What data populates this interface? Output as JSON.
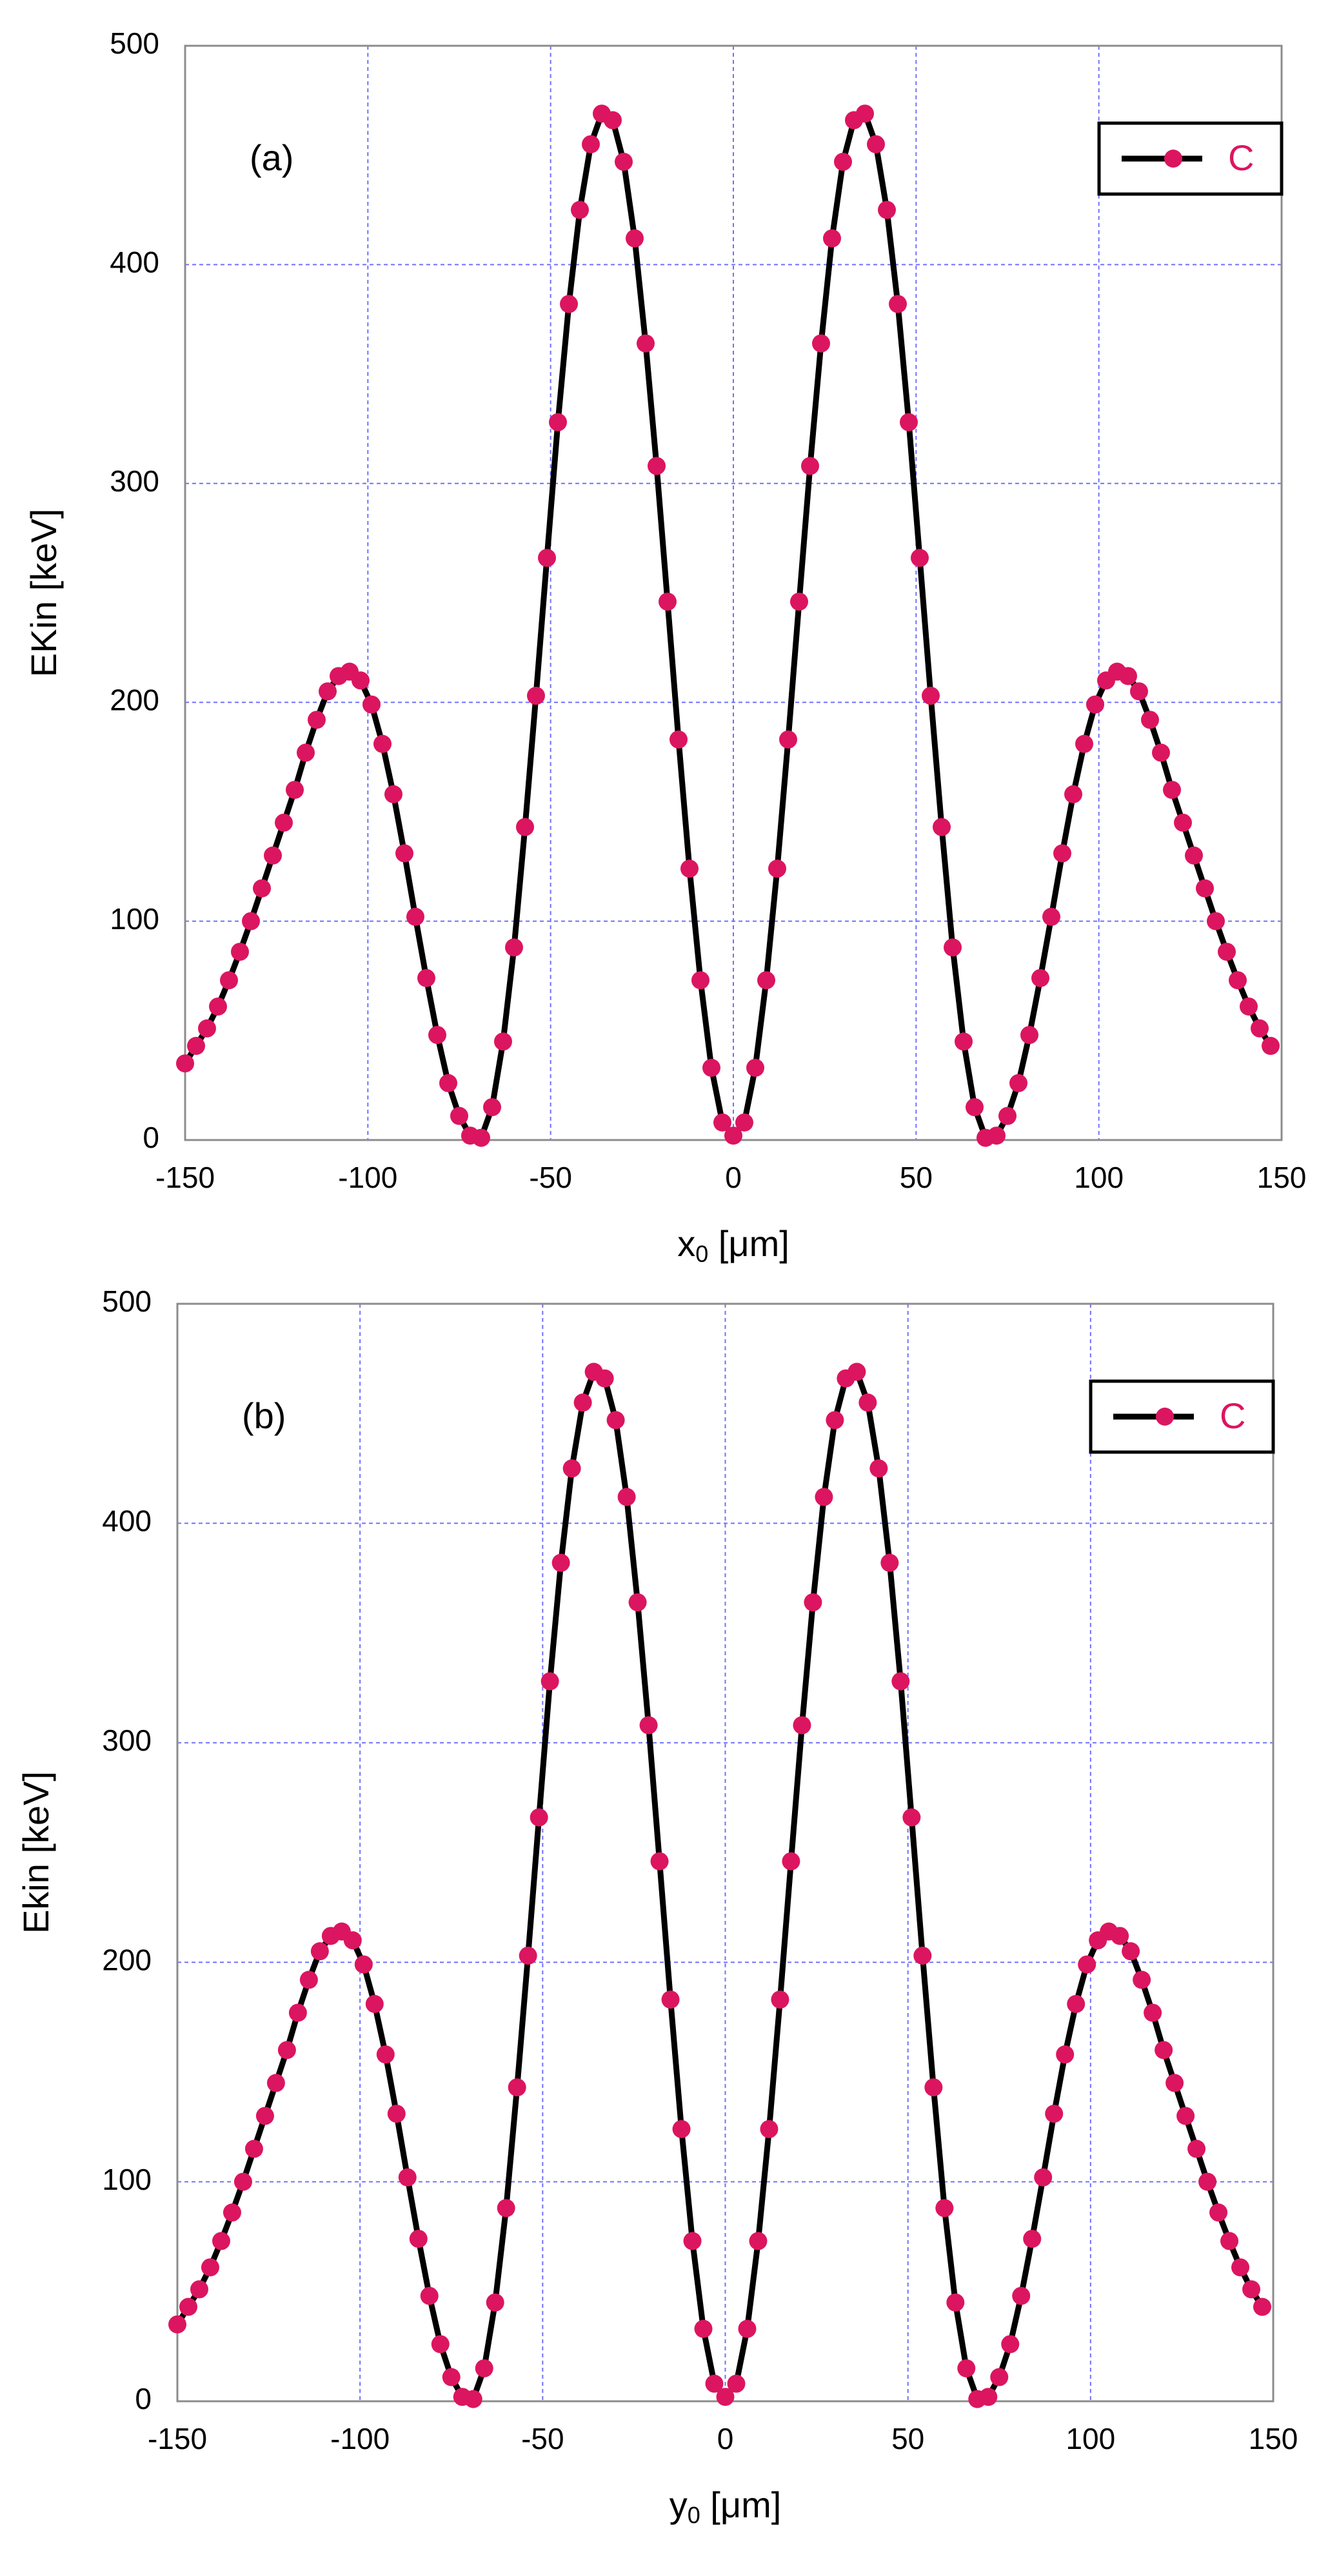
{
  "chart_data": [
    {
      "type": "line",
      "panel_label": "(a)",
      "ylabel": "EKin [keV]",
      "xlabel": {
        "base": "x",
        "sub": "0",
        "rest": " [μm]"
      },
      "xlim": [
        -150,
        150
      ],
      "ylim": [
        0,
        500
      ],
      "xticks": [
        -150,
        -100,
        -50,
        0,
        50,
        100,
        150
      ],
      "yticks": [
        0,
        100,
        200,
        300,
        400,
        500
      ],
      "grid": true,
      "legend": "upper right",
      "line_color": "#000000",
      "x": [
        -150,
        -147,
        -144,
        -141,
        -138,
        -135,
        -132,
        -129,
        -126,
        -123,
        -120,
        -117,
        -114,
        -111,
        -108,
        -105,
        -102,
        -99,
        -96,
        -93,
        -90,
        -87,
        -84,
        -81,
        -78,
        -75,
        -72,
        -69,
        -66,
        -63,
        -60,
        -57,
        -54,
        -51,
        -48,
        -45,
        -42,
        -39,
        -36,
        -33,
        -30,
        -27,
        -24,
        -21,
        -18,
        -15,
        -12,
        -9,
        -6,
        -3,
        0,
        3,
        6,
        9,
        12,
        15,
        18,
        21,
        24,
        27,
        30,
        33,
        36,
        39,
        42,
        45,
        48,
        51,
        54,
        57,
        60,
        63,
        66,
        69,
        72,
        75,
        78,
        81,
        84,
        87,
        90,
        93,
        96,
        99,
        102,
        105,
        108,
        111,
        114,
        117,
        120,
        123,
        126,
        129,
        132,
        135,
        138,
        141,
        144,
        147
      ],
      "series": [
        {
          "name": "C",
          "color": "#dc1560",
          "values": [
            35,
            43,
            51,
            61,
            73,
            86,
            100,
            115,
            130,
            145,
            160,
            177,
            192,
            205,
            212,
            214,
            210,
            199,
            181,
            158,
            131,
            102,
            74,
            48,
            26,
            11,
            2,
            1,
            15,
            45,
            88,
            143,
            203,
            266,
            328,
            382,
            425,
            455,
            469,
            466,
            447,
            412,
            364,
            308,
            246,
            183,
            124,
            73,
            33,
            8,
            2,
            8,
            33,
            73,
            124,
            183,
            246,
            308,
            364,
            412,
            447,
            466,
            469,
            455,
            425,
            382,
            328,
            266,
            203,
            143,
            88,
            45,
            15,
            1,
            2,
            11,
            26,
            48,
            74,
            102,
            131,
            158,
            181,
            199,
            210,
            214,
            212,
            205,
            192,
            177,
            160,
            145,
            130,
            115,
            100,
            86,
            73,
            61,
            51,
            43
          ]
        }
      ]
    },
    {
      "type": "line",
      "panel_label": "(b)",
      "ylabel": "Ekin [keV]",
      "xlabel": {
        "base": "y",
        "sub": "0",
        "rest": " [μm]"
      },
      "xlim": [
        -150,
        150
      ],
      "ylim": [
        0,
        500
      ],
      "xticks": [
        -150,
        -100,
        -50,
        0,
        50,
        100,
        150
      ],
      "yticks": [
        0,
        100,
        200,
        300,
        400,
        500
      ],
      "grid": true,
      "legend": "upper right",
      "line_color": "#000000",
      "x": [
        -150,
        -147,
        -144,
        -141,
        -138,
        -135,
        -132,
        -129,
        -126,
        -123,
        -120,
        -117,
        -114,
        -111,
        -108,
        -105,
        -102,
        -99,
        -96,
        -93,
        -90,
        -87,
        -84,
        -81,
        -78,
        -75,
        -72,
        -69,
        -66,
        -63,
        -60,
        -57,
        -54,
        -51,
        -48,
        -45,
        -42,
        -39,
        -36,
        -33,
        -30,
        -27,
        -24,
        -21,
        -18,
        -15,
        -12,
        -9,
        -6,
        -3,
        0,
        3,
        6,
        9,
        12,
        15,
        18,
        21,
        24,
        27,
        30,
        33,
        36,
        39,
        42,
        45,
        48,
        51,
        54,
        57,
        60,
        63,
        66,
        69,
        72,
        75,
        78,
        81,
        84,
        87,
        90,
        93,
        96,
        99,
        102,
        105,
        108,
        111,
        114,
        117,
        120,
        123,
        126,
        129,
        132,
        135,
        138,
        141,
        144,
        147
      ],
      "series": [
        {
          "name": "C",
          "color": "#dc1560",
          "values": [
            35,
            43,
            51,
            61,
            73,
            86,
            100,
            115,
            130,
            145,
            160,
            177,
            192,
            205,
            212,
            214,
            210,
            199,
            181,
            158,
            131,
            102,
            74,
            48,
            26,
            11,
            2,
            1,
            15,
            45,
            88,
            143,
            203,
            266,
            328,
            382,
            425,
            455,
            469,
            466,
            447,
            412,
            364,
            308,
            246,
            183,
            124,
            73,
            33,
            8,
            2,
            8,
            33,
            73,
            124,
            183,
            246,
            308,
            364,
            412,
            447,
            466,
            469,
            455,
            425,
            382,
            328,
            266,
            203,
            143,
            88,
            45,
            15,
            1,
            2,
            11,
            26,
            48,
            74,
            102,
            131,
            158,
            181,
            199,
            210,
            214,
            212,
            205,
            192,
            177,
            160,
            145,
            130,
            115,
            100,
            86,
            73,
            61,
            51,
            43
          ]
        }
      ]
    }
  ]
}
